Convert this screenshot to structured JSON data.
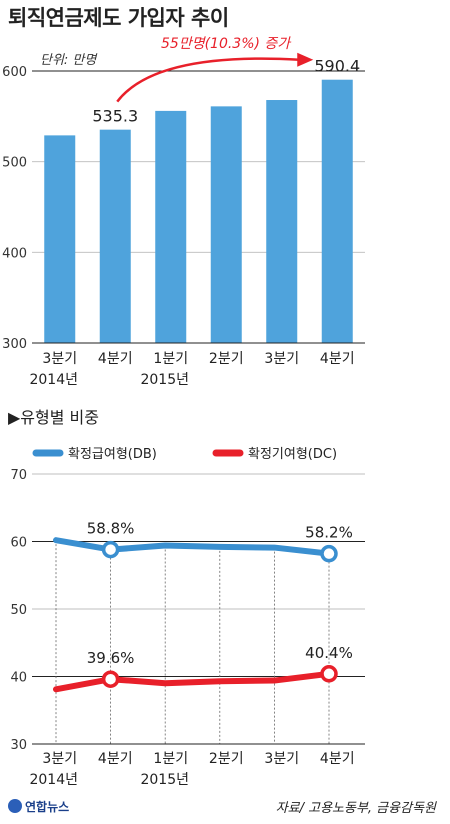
{
  "title": "퇴직연금제도 가입자 추이",
  "chart_data": [
    {
      "type": "bar",
      "unit_label": "단위: 만명",
      "categories": [
        {
          "quarter": "3분기",
          "year": "2014년"
        },
        {
          "quarter": "4분기",
          "year": ""
        },
        {
          "quarter": "1분기",
          "year": "2015년"
        },
        {
          "quarter": "2분기",
          "year": ""
        },
        {
          "quarter": "3분기",
          "year": ""
        },
        {
          "quarter": "4분기",
          "year": ""
        }
      ],
      "values": [
        529,
        535.3,
        556,
        561,
        568,
        590.4
      ],
      "data_labels": [
        "",
        "535.3",
        "",
        "",
        "",
        "590.4"
      ],
      "ylim": [
        300,
        600
      ],
      "yticks": [
        300,
        400,
        500,
        600
      ],
      "annotation": "55만명(10.3%) 증가",
      "bar_color": "#4fa3dc",
      "annotation_color": "#e8202a"
    },
    {
      "type": "line",
      "section_title": "▶유형별 비중",
      "categories": [
        {
          "quarter": "3분기",
          "year": "2014년"
        },
        {
          "quarter": "4분기",
          "year": ""
        },
        {
          "quarter": "1분기",
          "year": "2015년"
        },
        {
          "quarter": "2분기",
          "year": ""
        },
        {
          "quarter": "3분기",
          "year": ""
        },
        {
          "quarter": "4분기",
          "year": ""
        }
      ],
      "ylim": [
        30,
        70
      ],
      "yticks": [
        30,
        40,
        50,
        60,
        70
      ],
      "series": [
        {
          "name": "확정급여형(DB)",
          "color": "#3a8fd0",
          "values": [
            60.2,
            58.8,
            59.4,
            59.2,
            59.1,
            58.2
          ],
          "data_labels": [
            "",
            "58.8%",
            "",
            "",
            "",
            "58.2%"
          ]
        },
        {
          "name": "확정기여형(DC)",
          "color": "#e8202a",
          "values": [
            38.1,
            39.6,
            39.0,
            39.3,
            39.4,
            40.4
          ],
          "data_labels": [
            "",
            "39.6%",
            "",
            "",
            "",
            "40.4%"
          ]
        }
      ]
    }
  ],
  "footer": {
    "logo": "연합뉴스",
    "source": "자료/ 고용노동부, 금융감독원"
  }
}
